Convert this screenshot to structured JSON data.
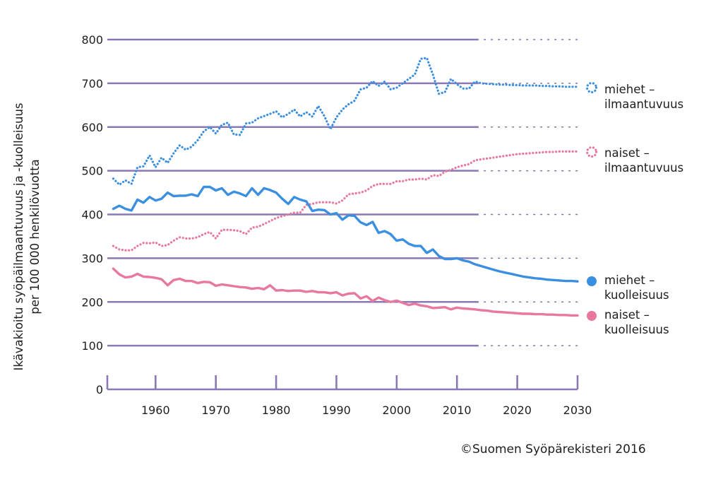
{
  "chart_data": {
    "type": "line",
    "ylabel_lines": [
      "Ikävakioitu syöpäilmaantuvuus ja -kuolleisuus",
      "per 100 000 henkilövuotta"
    ],
    "yticks": [
      0,
      100,
      200,
      300,
      400,
      500,
      600,
      700,
      800
    ],
    "xticks": [
      1960,
      1970,
      1980,
      1990,
      2000,
      2010,
      2020,
      2030
    ],
    "xlim": [
      1952,
      2030
    ],
    "ylim": [
      0,
      800
    ],
    "grid": true,
    "projection_start": 2013,
    "legend_position": "right",
    "series": [
      {
        "key": "men_incidence",
        "name_lines": [
          "miehet –",
          "ilmaantuvuus"
        ],
        "color": "#3b8fe0",
        "style": "dotted",
        "x": [
          1953,
          1954,
          1955,
          1956,
          1957,
          1958,
          1959,
          1960,
          1961,
          1962,
          1963,
          1964,
          1965,
          1966,
          1967,
          1968,
          1969,
          1970,
          1971,
          1972,
          1973,
          1974,
          1975,
          1976,
          1977,
          1978,
          1979,
          1980,
          1981,
          1982,
          1983,
          1984,
          1985,
          1986,
          1987,
          1988,
          1989,
          1990,
          1991,
          1992,
          1993,
          1994,
          1995,
          1996,
          1997,
          1998,
          1999,
          2000,
          2001,
          2002,
          2003,
          2004,
          2005,
          2006,
          2007,
          2008,
          2009,
          2010,
          2011,
          2012,
          2013,
          2014,
          2015,
          2016,
          2017,
          2018,
          2019,
          2020,
          2021,
          2022,
          2023,
          2024,
          2025,
          2026,
          2027,
          2028,
          2029,
          2030
        ],
        "values": [
          482,
          468,
          478,
          470,
          508,
          510,
          535,
          508,
          530,
          518,
          540,
          558,
          548,
          555,
          570,
          590,
          600,
          585,
          605,
          610,
          583,
          582,
          608,
          610,
          620,
          625,
          630,
          636,
          622,
          630,
          640,
          624,
          634,
          624,
          648,
          625,
          595,
          622,
          640,
          652,
          660,
          686,
          690,
          705,
          694,
          704,
          686,
          690,
          700,
          710,
          720,
          756,
          758,
          720,
          676,
          680,
          710,
          698,
          688,
          688,
          704,
          700,
          699,
          698,
          697,
          697,
          696,
          696,
          695,
          695,
          695,
          694,
          694,
          693,
          693,
          692,
          692,
          692
        ]
      },
      {
        "key": "women_incidence",
        "name_lines": [
          "naiset –",
          "ilmaantuvuus"
        ],
        "color": "#e8789d",
        "style": "dotted",
        "x": [
          1953,
          1954,
          1955,
          1956,
          1957,
          1958,
          1959,
          1960,
          1961,
          1962,
          1963,
          1964,
          1965,
          1966,
          1967,
          1968,
          1969,
          1970,
          1971,
          1972,
          1973,
          1974,
          1975,
          1976,
          1977,
          1978,
          1979,
          1980,
          1981,
          1982,
          1983,
          1984,
          1985,
          1986,
          1987,
          1988,
          1989,
          1990,
          1991,
          1992,
          1993,
          1994,
          1995,
          1996,
          1997,
          1998,
          1999,
          2000,
          2001,
          2002,
          2003,
          2004,
          2005,
          2006,
          2007,
          2008,
          2009,
          2010,
          2011,
          2012,
          2013,
          2014,
          2015,
          2016,
          2017,
          2018,
          2019,
          2020,
          2021,
          2022,
          2023,
          2024,
          2025,
          2026,
          2027,
          2028,
          2029,
          2030
        ],
        "values": [
          328,
          320,
          318,
          318,
          328,
          335,
          334,
          336,
          328,
          330,
          340,
          348,
          345,
          345,
          348,
          355,
          360,
          345,
          365,
          365,
          364,
          362,
          355,
          370,
          372,
          378,
          385,
          392,
          396,
          400,
          404,
          404,
          422,
          424,
          428,
          428,
          428,
          425,
          432,
          446,
          448,
          450,
          455,
          465,
          470,
          470,
          470,
          476,
          476,
          480,
          480,
          482,
          480,
          490,
          488,
          498,
          502,
          508,
          512,
          515,
          524,
          526,
          528,
          530,
          532,
          534,
          536,
          538,
          539,
          540,
          541,
          542,
          543,
          543,
          544,
          544,
          544,
          544
        ]
      },
      {
        "key": "men_mortality",
        "name_lines": [
          "miehet –",
          "kuolleisuus"
        ],
        "color": "#3b8fe0",
        "style": "solid",
        "x": [
          1953,
          1954,
          1955,
          1956,
          1957,
          1958,
          1959,
          1960,
          1961,
          1962,
          1963,
          1964,
          1965,
          1966,
          1967,
          1968,
          1969,
          1970,
          1971,
          1972,
          1973,
          1974,
          1975,
          1976,
          1977,
          1978,
          1979,
          1980,
          1981,
          1982,
          1983,
          1984,
          1985,
          1986,
          1987,
          1988,
          1989,
          1990,
          1991,
          1992,
          1993,
          1994,
          1995,
          1996,
          1997,
          1998,
          1999,
          2000,
          2001,
          2002,
          2003,
          2004,
          2005,
          2006,
          2007,
          2008,
          2009,
          2010,
          2011,
          2012,
          2013,
          2014,
          2015,
          2016,
          2017,
          2018,
          2019,
          2020,
          2021,
          2022,
          2023,
          2024,
          2025,
          2026,
          2027,
          2028,
          2029,
          2030
        ],
        "values": [
          413,
          420,
          413,
          409,
          434,
          427,
          440,
          432,
          436,
          450,
          442,
          443,
          443,
          446,
          442,
          463,
          463,
          455,
          460,
          445,
          452,
          448,
          442,
          460,
          445,
          460,
          456,
          450,
          436,
          424,
          440,
          434,
          430,
          408,
          411,
          410,
          400,
          403,
          388,
          398,
          397,
          382,
          376,
          383,
          358,
          362,
          355,
          340,
          343,
          333,
          328,
          328,
          312,
          320,
          305,
          298,
          298,
          300,
          295,
          292,
          286,
          282,
          278,
          274,
          270,
          267,
          264,
          261,
          258,
          256,
          254,
          253,
          251,
          250,
          249,
          248,
          248,
          247
        ]
      },
      {
        "key": "women_mortality",
        "name_lines": [
          "naiset –",
          "kuolleisuus"
        ],
        "color": "#e8789d",
        "style": "solid",
        "x": [
          1953,
          1954,
          1955,
          1956,
          1957,
          1958,
          1959,
          1960,
          1961,
          1962,
          1963,
          1964,
          1965,
          1966,
          1967,
          1968,
          1969,
          1970,
          1971,
          1972,
          1973,
          1974,
          1975,
          1976,
          1977,
          1978,
          1979,
          1980,
          1981,
          1982,
          1983,
          1984,
          1985,
          1986,
          1987,
          1988,
          1989,
          1990,
          1991,
          1992,
          1993,
          1994,
          1995,
          1996,
          1997,
          1998,
          1999,
          2000,
          2001,
          2002,
          2003,
          2004,
          2005,
          2006,
          2007,
          2008,
          2009,
          2010,
          2011,
          2012,
          2013,
          2014,
          2015,
          2016,
          2017,
          2018,
          2019,
          2020,
          2021,
          2022,
          2023,
          2024,
          2025,
          2026,
          2027,
          2028,
          2029,
          2030
        ],
        "values": [
          276,
          263,
          256,
          258,
          264,
          258,
          257,
          255,
          252,
          238,
          250,
          253,
          248,
          248,
          243,
          246,
          245,
          237,
          240,
          238,
          236,
          234,
          233,
          230,
          232,
          229,
          238,
          226,
          227,
          225,
          226,
          226,
          223,
          225,
          222,
          222,
          220,
          222,
          215,
          219,
          220,
          208,
          213,
          202,
          210,
          204,
          200,
          203,
          198,
          193,
          196,
          192,
          190,
          186,
          187,
          188,
          183,
          187,
          185,
          184,
          183,
          181,
          180,
          178,
          177,
          176,
          175,
          174,
          173,
          173,
          172,
          172,
          171,
          171,
          170,
          170,
          169,
          169
        ]
      }
    ]
  },
  "credit": "©Suomen Syöpärekisteri 2016"
}
